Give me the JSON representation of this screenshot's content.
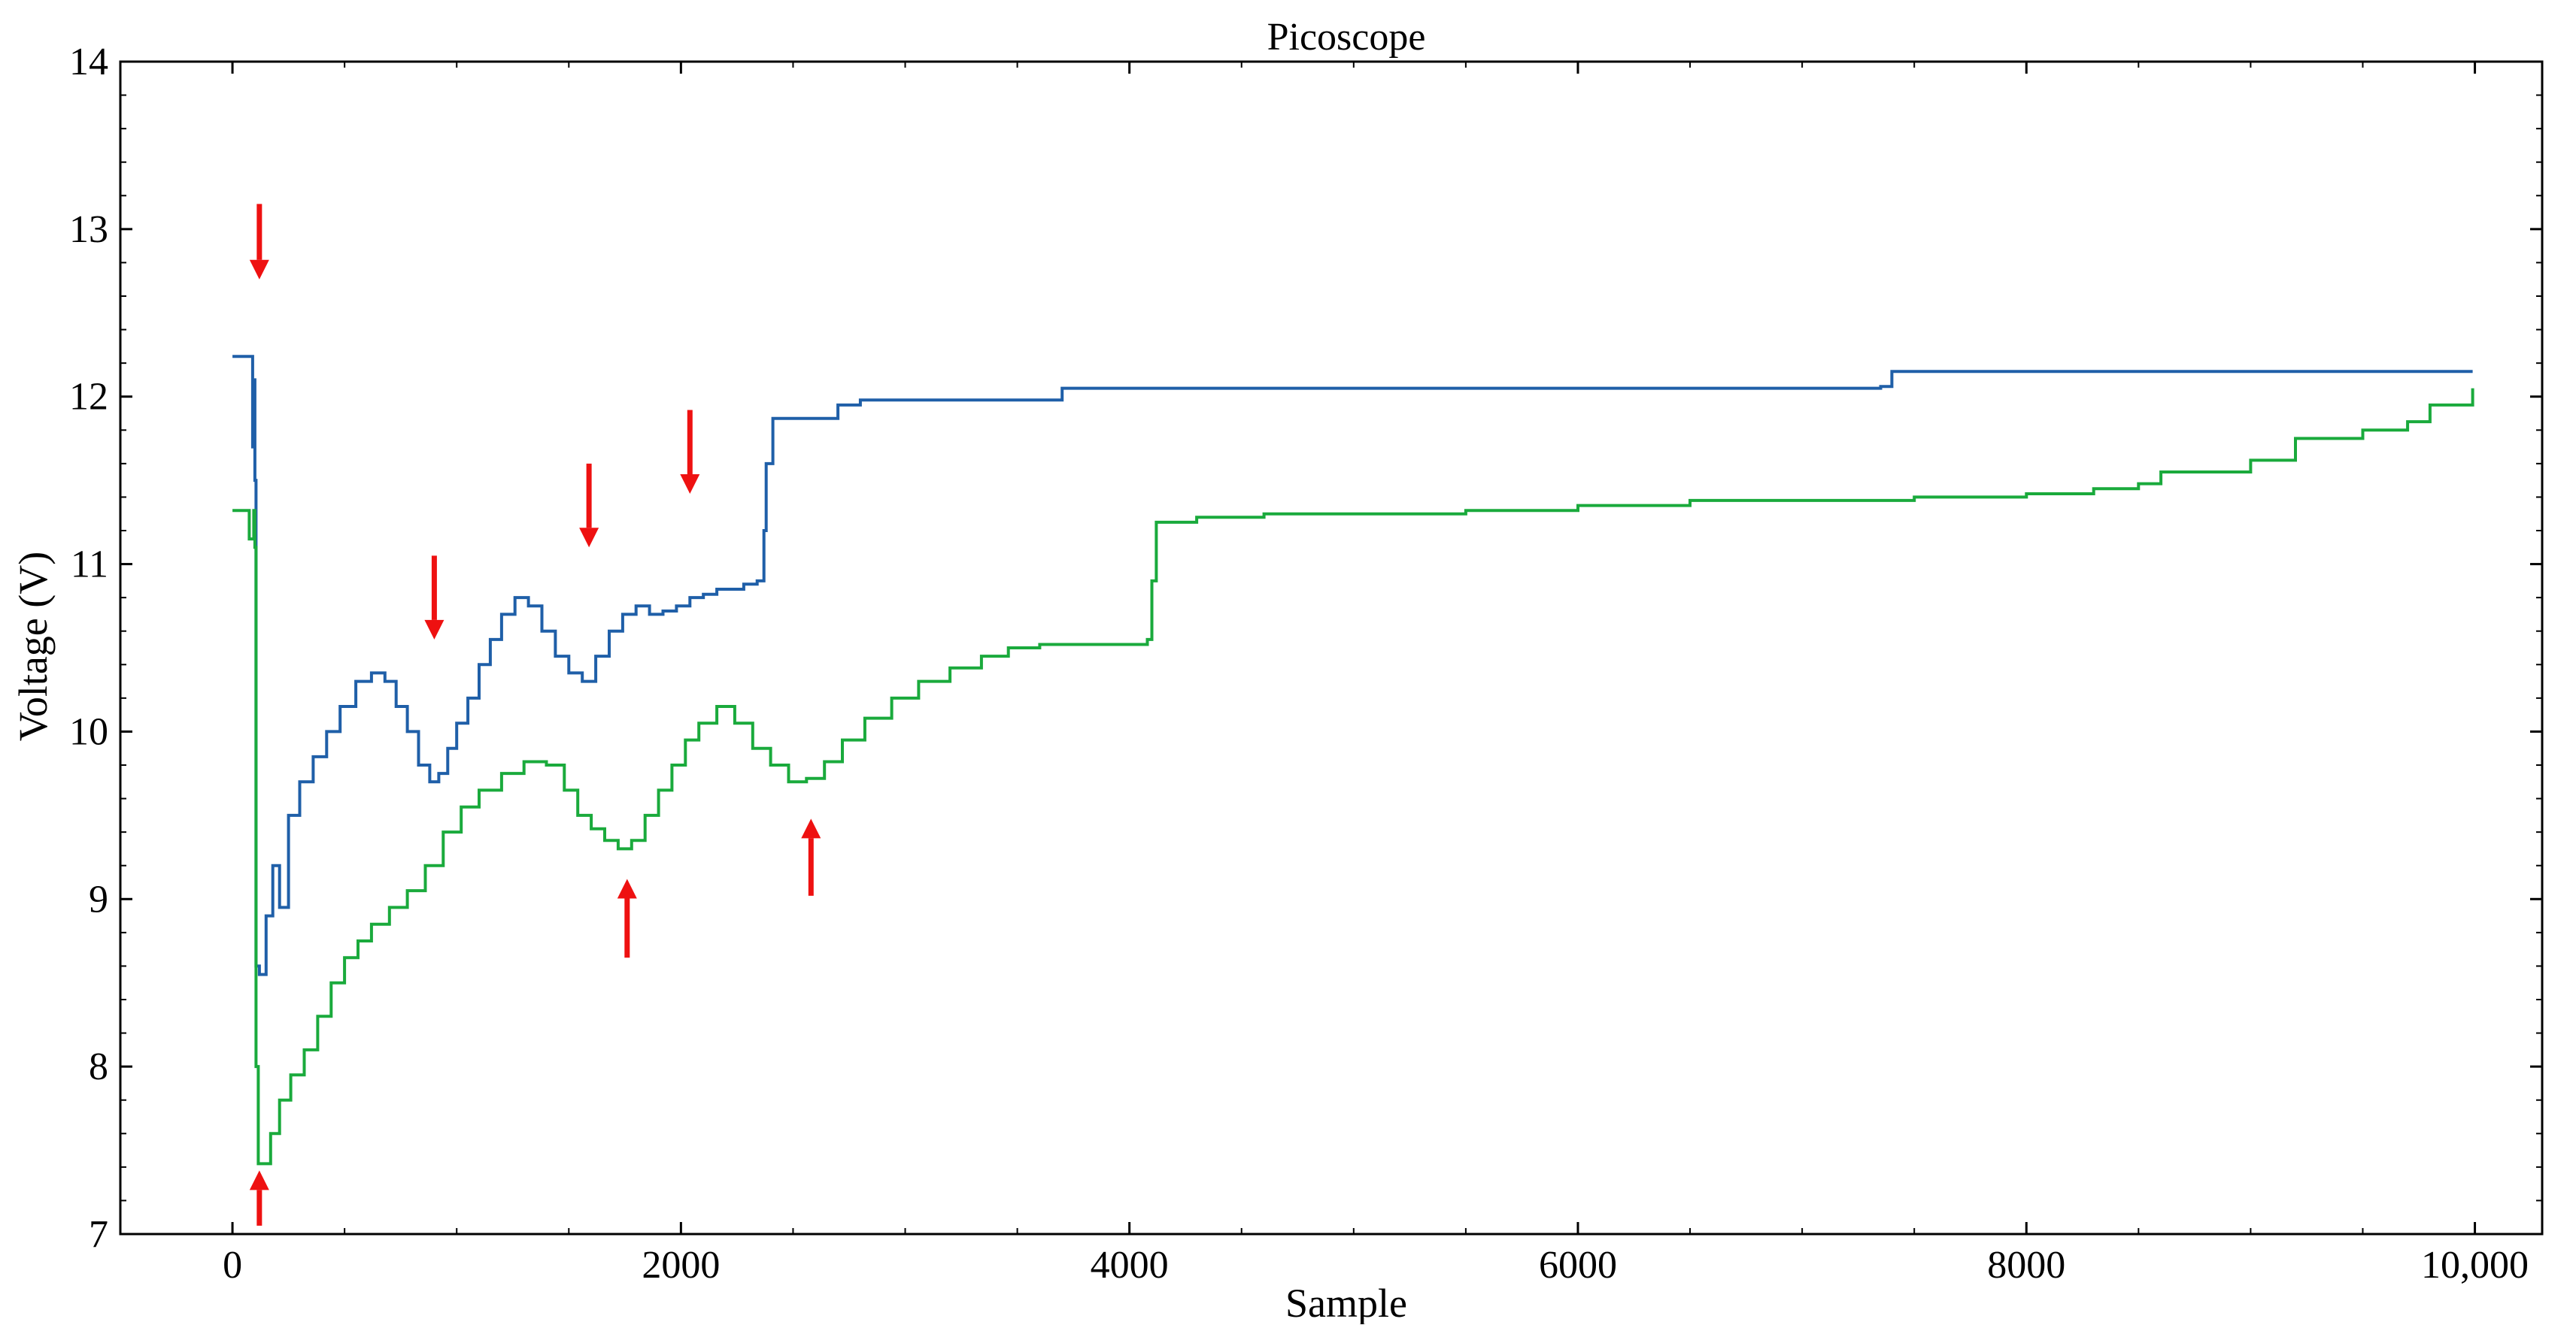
{
  "chart_data": {
    "type": "line",
    "title": "Picoscope",
    "xlabel": "Sample",
    "ylabel": "Voltage (V)",
    "xlim": [
      -500,
      10300
    ],
    "ylim": [
      7,
      14
    ],
    "x_ticks": [
      0,
      2000,
      4000,
      6000,
      8000,
      10000
    ],
    "x_tick_labels": [
      "0",
      "2000",
      "4000",
      "6000",
      "8000",
      "10,000"
    ],
    "y_ticks": [
      7,
      8,
      9,
      10,
      11,
      12,
      13,
      14
    ],
    "y_tick_labels": [
      "7",
      "8",
      "9",
      "10",
      "11",
      "12",
      "13",
      "14"
    ],
    "grid": false,
    "series": [
      {
        "name": "blue",
        "color": "#1f5fa8",
        "points": [
          [
            0,
            12.24
          ],
          [
            80,
            12.24
          ],
          [
            90,
            11.7
          ],
          [
            95,
            12.1
          ],
          [
            100,
            11.5
          ],
          [
            105,
            8.6
          ],
          [
            120,
            8.55
          ],
          [
            150,
            8.9
          ],
          [
            180,
            9.2
          ],
          [
            210,
            8.95
          ],
          [
            250,
            9.5
          ],
          [
            300,
            9.7
          ],
          [
            360,
            9.85
          ],
          [
            420,
            10.0
          ],
          [
            480,
            10.15
          ],
          [
            550,
            10.3
          ],
          [
            620,
            10.35
          ],
          [
            680,
            10.3
          ],
          [
            730,
            10.15
          ],
          [
            780,
            10.0
          ],
          [
            830,
            9.8
          ],
          [
            880,
            9.7
          ],
          [
            920,
            9.75
          ],
          [
            960,
            9.9
          ],
          [
            1000,
            10.05
          ],
          [
            1050,
            10.2
          ],
          [
            1100,
            10.4
          ],
          [
            1150,
            10.55
          ],
          [
            1200,
            10.7
          ],
          [
            1260,
            10.8
          ],
          [
            1320,
            10.75
          ],
          [
            1380,
            10.6
          ],
          [
            1440,
            10.45
          ],
          [
            1500,
            10.35
          ],
          [
            1560,
            10.3
          ],
          [
            1620,
            10.45
          ],
          [
            1680,
            10.6
          ],
          [
            1740,
            10.7
          ],
          [
            1800,
            10.75
          ],
          [
            1860,
            10.7
          ],
          [
            1920,
            10.72
          ],
          [
            1980,
            10.75
          ],
          [
            2040,
            10.8
          ],
          [
            2100,
            10.82
          ],
          [
            2160,
            10.85
          ],
          [
            2220,
            10.85
          ],
          [
            2280,
            10.88
          ],
          [
            2340,
            10.9
          ],
          [
            2370,
            11.2
          ],
          [
            2380,
            11.6
          ],
          [
            2410,
            11.87
          ],
          [
            2650,
            11.87
          ],
          [
            2700,
            11.95
          ],
          [
            2800,
            11.98
          ],
          [
            2900,
            11.98
          ],
          [
            3000,
            11.98
          ],
          [
            3200,
            11.98
          ],
          [
            3400,
            11.98
          ],
          [
            3600,
            11.98
          ],
          [
            3700,
            12.05
          ],
          [
            4000,
            12.05
          ],
          [
            5000,
            12.05
          ],
          [
            6000,
            12.05
          ],
          [
            7000,
            12.05
          ],
          [
            7350,
            12.06
          ],
          [
            7400,
            12.15
          ],
          [
            8000,
            12.15
          ],
          [
            8500,
            12.15
          ],
          [
            9000,
            12.15
          ],
          [
            9500,
            12.15
          ],
          [
            9990,
            12.15
          ]
        ]
      },
      {
        "name": "green",
        "color": "#1aaa3c",
        "points": [
          [
            0,
            11.32
          ],
          [
            70,
            11.32
          ],
          [
            75,
            11.15
          ],
          [
            95,
            11.32
          ],
          [
            100,
            11.1
          ],
          [
            105,
            8.0
          ],
          [
            115,
            7.42
          ],
          [
            160,
            7.42
          ],
          [
            170,
            7.6
          ],
          [
            210,
            7.8
          ],
          [
            260,
            7.95
          ],
          [
            320,
            8.1
          ],
          [
            380,
            8.3
          ],
          [
            440,
            8.5
          ],
          [
            500,
            8.65
          ],
          [
            560,
            8.75
          ],
          [
            620,
            8.85
          ],
          [
            700,
            8.95
          ],
          [
            780,
            9.05
          ],
          [
            860,
            9.2
          ],
          [
            940,
            9.4
          ],
          [
            1020,
            9.55
          ],
          [
            1100,
            9.65
          ],
          [
            1200,
            9.75
          ],
          [
            1300,
            9.82
          ],
          [
            1400,
            9.8
          ],
          [
            1480,
            9.65
          ],
          [
            1540,
            9.5
          ],
          [
            1600,
            9.42
          ],
          [
            1660,
            9.35
          ],
          [
            1720,
            9.3
          ],
          [
            1780,
            9.35
          ],
          [
            1840,
            9.5
          ],
          [
            1900,
            9.65
          ],
          [
            1960,
            9.8
          ],
          [
            2020,
            9.95
          ],
          [
            2080,
            10.05
          ],
          [
            2160,
            10.15
          ],
          [
            2240,
            10.05
          ],
          [
            2320,
            9.9
          ],
          [
            2400,
            9.8
          ],
          [
            2480,
            9.7
          ],
          [
            2560,
            9.72
          ],
          [
            2640,
            9.82
          ],
          [
            2720,
            9.95
          ],
          [
            2820,
            10.08
          ],
          [
            2940,
            10.2
          ],
          [
            3060,
            10.3
          ],
          [
            3200,
            10.38
          ],
          [
            3340,
            10.45
          ],
          [
            3460,
            10.5
          ],
          [
            3600,
            10.52
          ],
          [
            3800,
            10.52
          ],
          [
            4080,
            10.55
          ],
          [
            4100,
            10.9
          ],
          [
            4120,
            11.25
          ],
          [
            4300,
            11.28
          ],
          [
            4600,
            11.3
          ],
          [
            5000,
            11.3
          ],
          [
            5500,
            11.32
          ],
          [
            6000,
            11.35
          ],
          [
            6500,
            11.38
          ],
          [
            7000,
            11.38
          ],
          [
            7500,
            11.4
          ],
          [
            8000,
            11.42
          ],
          [
            8300,
            11.45
          ],
          [
            8500,
            11.48
          ],
          [
            8600,
            11.55
          ],
          [
            9000,
            11.62
          ],
          [
            9200,
            11.75
          ],
          [
            9500,
            11.8
          ],
          [
            9700,
            11.85
          ],
          [
            9800,
            11.95
          ],
          [
            9990,
            12.05
          ]
        ]
      }
    ],
    "annotations": [
      {
        "type": "red-arrow-down",
        "x": 120,
        "y_tip": 12.7,
        "y_tail": 13.15
      },
      {
        "type": "red-arrow-up",
        "x": 120,
        "y_tip": 7.38,
        "y_tail": 7.05
      },
      {
        "type": "red-arrow-down",
        "x": 900,
        "y_tip": 10.55,
        "y_tail": 11.05
      },
      {
        "type": "red-arrow-down",
        "x": 1590,
        "y_tip": 11.1,
        "y_tail": 11.6
      },
      {
        "type": "red-arrow-down",
        "x": 2040,
        "y_tip": 11.42,
        "y_tail": 11.92
      },
      {
        "type": "red-arrow-up",
        "x": 1760,
        "y_tip": 9.12,
        "y_tail": 8.65
      },
      {
        "type": "red-arrow-up",
        "x": 2580,
        "y_tip": 9.48,
        "y_tail": 9.02
      }
    ]
  }
}
